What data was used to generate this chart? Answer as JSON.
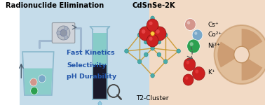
{
  "title": "Radionuclide Elimination",
  "center_label": "CdSnSe-2K",
  "cluster_label": "T2-Cluster",
  "left_text": [
    "Fast Kinetics",
    "Selectivity",
    "pH Durability"
  ],
  "right_labels": [
    "Cs⁺",
    "Co²⁺",
    "Ni²⁺",
    "K⁺"
  ],
  "bg_left": "#c5dcea",
  "bg_right": "#f2dac5",
  "ball_pink": "#d4968c",
  "ball_blue": "#7aa8c8",
  "ball_green": "#2da050",
  "ball_red": "#cc2020",
  "bond_color": "#c8952a",
  "cluster_teal": "#4aacaa",
  "cluster_red": "#cc2222",
  "text_color_left": "#2255aa",
  "radiation_tan": "#c8a06a",
  "beaker_color": "#8ab8cc",
  "water_teal": "#78c8c0",
  "pump_gray": "#b0b8c0",
  "tube_color": "#a0b8d0",
  "dark_fill": "#1a1a2a",
  "drip_color": "#90cce0"
}
